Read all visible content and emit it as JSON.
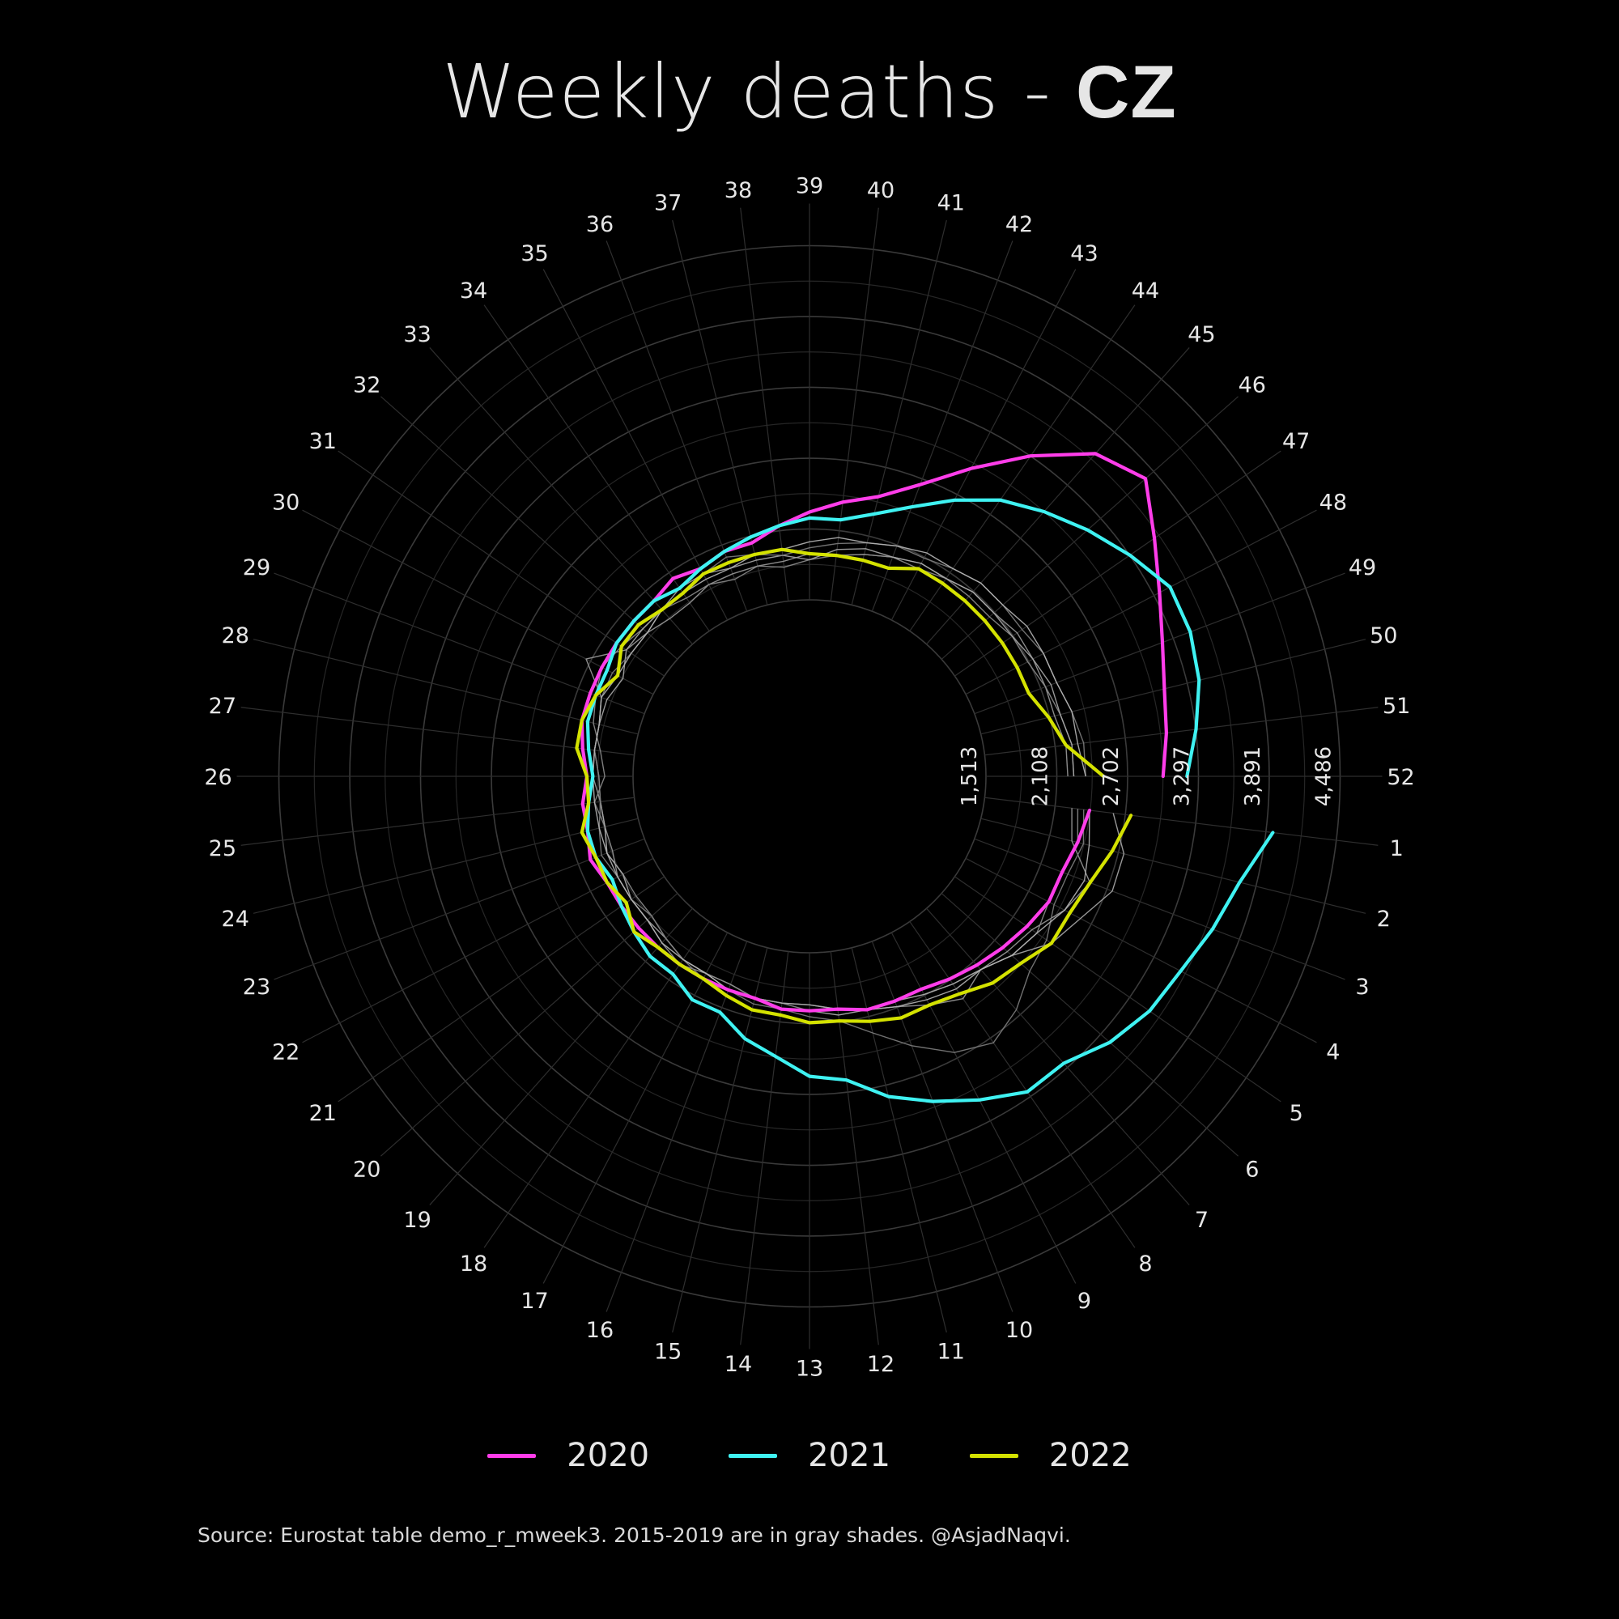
{
  "title": {
    "main": "Weekly deaths - ",
    "country": "CZ"
  },
  "source": "Source: Eurostat table demo_r_mweek3. 2015-2019 are in gray shades. @AsjadNaqvi.",
  "legend": [
    {
      "label": "2020",
      "color": "#ff3dea"
    },
    {
      "label": "2021",
      "color": "#3ff2f2"
    },
    {
      "label": "2022",
      "color": "#d4e200"
    }
  ],
  "chart_data": {
    "type": "line",
    "projection": "polar",
    "grid": true,
    "legend_position": "bottom",
    "theta_axis": {
      "label": "week",
      "weeks": [
        1,
        2,
        3,
        4,
        5,
        6,
        7,
        8,
        9,
        10,
        11,
        12,
        13,
        14,
        15,
        16,
        17,
        18,
        19,
        20,
        21,
        22,
        23,
        24,
        25,
        26,
        27,
        28,
        29,
        30,
        31,
        32,
        33,
        34,
        35,
        36,
        37,
        38,
        39,
        40,
        41,
        42,
        43,
        44,
        45,
        46,
        47,
        48,
        49,
        50,
        51,
        52
      ]
    },
    "radial_axis": {
      "ticks": [
        1513,
        2108,
        2702,
        3297,
        3891,
        4486
      ],
      "tick_labels": [
        "1,513",
        "2,108",
        "2,702",
        "3,297",
        "3,891",
        "4,486"
      ],
      "range": [
        0,
        4486
      ]
    },
    "gray_series": [
      {
        "name": "2015",
        "color": "#9a9a9a",
        "values": [
          2250,
          2300,
          2550,
          2450,
          2300,
          2250,
          2200,
          2300,
          2200,
          2100,
          2050,
          2000,
          1950,
          1950,
          1950,
          1900,
          1900,
          1950,
          1900,
          1850,
          1850,
          1850,
          1800,
          1800,
          1800,
          1850,
          1850,
          1850,
          1900,
          2150,
          1900,
          1850,
          1800,
          1800,
          1850,
          1850,
          1850,
          1850,
          1900,
          1900,
          1950,
          2000,
          2050,
          2050,
          2100,
          2100,
          2150,
          2150,
          2150,
          2150,
          2200,
          2200
        ]
      },
      {
        "name": "2016",
        "color": "#8c8c8c",
        "values": [
          2300,
          2350,
          2300,
          2300,
          2350,
          2300,
          2200,
          2150,
          2100,
          2050,
          2050,
          2000,
          2000,
          1950,
          1950,
          1900,
          1900,
          1900,
          1850,
          1800,
          1800,
          1800,
          1850,
          1800,
          1850,
          1750,
          1800,
          1900,
          1950,
          2000,
          1950,
          1900,
          1900,
          1850,
          1850,
          1800,
          1850,
          1800,
          1850,
          1900,
          1950,
          2000,
          2000,
          2050,
          2050,
          2050,
          2100,
          2100,
          2150,
          2200,
          2250,
          2250
        ]
      },
      {
        "name": "2017",
        "color": "#a8a8a8",
        "values": [
          2600,
          2750,
          2750,
          2600,
          2500,
          2300,
          2200,
          2150,
          2100,
          2050,
          2050,
          2000,
          1950,
          1950,
          1950,
          1950,
          1900,
          1900,
          1850,
          1850,
          1850,
          1800,
          1850,
          1800,
          1800,
          1800,
          1850,
          1850,
          1850,
          1800,
          1900,
          1900,
          1900,
          1950,
          1950,
          1900,
          1900,
          1900,
          1850,
          1950,
          2000,
          2000,
          2050,
          2050,
          2100,
          2100,
          2100,
          2150,
          2200,
          2200,
          2250,
          2250
        ]
      },
      {
        "name": "2018",
        "color": "#7d7d7d",
        "values": [
          2350,
          2400,
          2350,
          2350,
          2450,
          2500,
          2650,
          2750,
          2650,
          2450,
          2250,
          2100,
          2050,
          2000,
          2000,
          1950,
          1950,
          1900,
          1850,
          1800,
          1850,
          1850,
          1900,
          1850,
          1800,
          1800,
          1850,
          1850,
          1900,
          1900,
          1850,
          1850,
          1900,
          1900,
          1950,
          2000,
          1950,
          1900,
          1950,
          2000,
          2050,
          2100,
          2100,
          2150,
          2200,
          2200,
          2200,
          2250,
          2250,
          2300,
          2350,
          2350
        ]
      },
      {
        "name": "2019",
        "color": "#b5b5b5",
        "values": [
          2400,
          2450,
          2500,
          2450,
          2350,
          2300,
          2200,
          2200,
          2150,
          2100,
          2050,
          2050,
          2000,
          2000,
          1950,
          1950,
          1900,
          1900,
          1900,
          1850,
          1850,
          1850,
          1850,
          1850,
          1850,
          1850,
          1850,
          1850,
          1900,
          1850,
          1850,
          1850,
          1900,
          1900,
          1900,
          1900,
          1950,
          1950,
          2000,
          2050,
          2050,
          2100,
          2150,
          2150,
          2200,
          2200,
          2250,
          2250,
          2250,
          2300,
          2300,
          2350
        ]
      }
    ],
    "series": [
      {
        "name": "2020",
        "color": "#ff3dea",
        "values": [
          2400,
          2350,
          2300,
          2300,
          2250,
          2200,
          2150,
          2100,
          2050,
          2050,
          2050,
          2000,
          2000,
          2000,
          1950,
          1950,
          1950,
          1950,
          1950,
          1950,
          1950,
          1950,
          2000,
          1950,
          1950,
          1900,
          1950,
          2000,
          2000,
          2000,
          2000,
          2000,
          2000,
          2050,
          2000,
          2050,
          2050,
          2150,
          2250,
          2350,
          2450,
          2650,
          2950,
          3300,
          3650,
          3800,
          3550,
          3350,
          3200,
          3100,
          3050,
          3000
        ]
      },
      {
        "name": "2021",
        "color": "#3ff2f2",
        "values": [
          3950,
          3750,
          3650,
          3550,
          3500,
          3400,
          3250,
          3250,
          3100,
          2950,
          2800,
          2600,
          2550,
          2400,
          2300,
          2150,
          2150,
          2050,
          2050,
          2000,
          1950,
          1900,
          1950,
          1950,
          1900,
          1850,
          1900,
          1950,
          1950,
          1950,
          2000,
          2000,
          2000,
          1950,
          2000,
          2050,
          2100,
          2150,
          2200,
          2200,
          2300,
          2450,
          2650,
          2850,
          3000,
          3150,
          3300,
          3450,
          3450,
          3400,
          3300,
          3200
        ]
      },
      {
        "name": "2022",
        "color": "#d4e200",
        "values": [
          2750,
          2650,
          2550,
          2500,
          2500,
          2400,
          2350,
          2250,
          2200,
          2200,
          2150,
          2100,
          2100,
          2050,
          2050,
          2000,
          1950,
          1950,
          1950,
          2000,
          1900,
          1950,
          1950,
          2000,
          1900,
          1900,
          2000,
          2000,
          1950,
          1850,
          1950,
          1950,
          1900,
          1900,
          1950,
          1950,
          1950,
          1950,
          1900,
          1900,
          1900,
          1900,
          2000,
          2000,
          2000,
          2000,
          2000,
          2000,
          2000,
          2100,
          2200,
          2500
        ]
      }
    ]
  }
}
